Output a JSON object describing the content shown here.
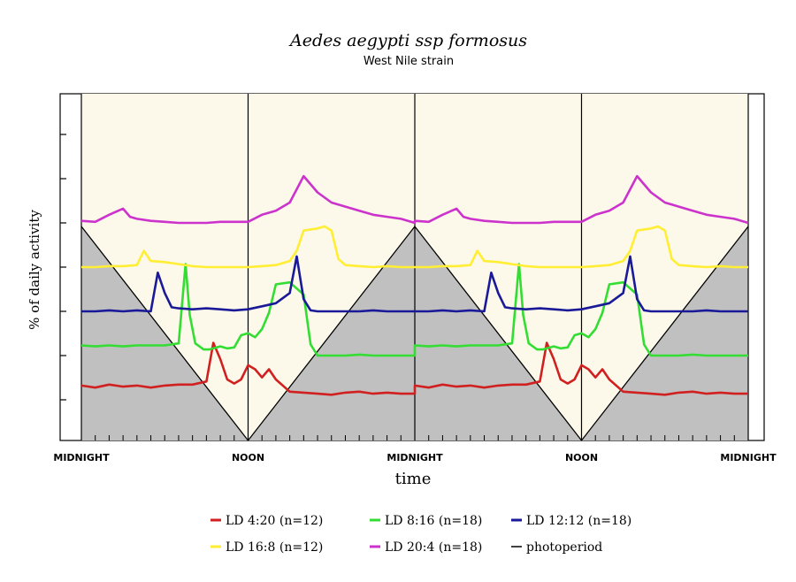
{
  "chart_data": {
    "type": "line",
    "title": "Aedes aegypti ssp formosus",
    "subtitle": "West Nile strain",
    "xlabel": "time",
    "ylabel": "% of daily activity",
    "x_tick_labels": [
      "MIDNIGHT",
      "NOON",
      "MIDNIGHT",
      "NOON",
      "MIDNIGHT"
    ],
    "x_range_hours": [
      0,
      48
    ],
    "grid": false,
    "legend_placement": "bottom",
    "photoperiod": {
      "name": "photoperiod",
      "color": "#000000",
      "points": [
        [
          0,
          6
        ],
        [
          12,
          0
        ],
        [
          24,
          6
        ],
        [
          36,
          0
        ],
        [
          48,
          6
        ]
      ],
      "lights_on_color": "#fdf9ea",
      "lights_off_color": "#c0c0c0"
    },
    "series": [
      {
        "name": "LD 4:20 (n=12)",
        "color": "#d02020",
        "x": [
          0,
          1,
          2,
          3,
          4,
          5,
          6,
          7,
          8,
          9,
          9.5,
          10,
          10.5,
          11,
          11.5,
          12,
          12.5,
          13,
          13.5,
          14,
          15,
          16,
          17,
          18,
          19,
          20,
          21,
          22,
          23,
          24
        ],
        "values": [
          0.7,
          0.6,
          0.75,
          0.65,
          0.7,
          0.6,
          0.7,
          0.75,
          0.75,
          0.9,
          2.8,
          2.0,
          1.0,
          0.8,
          1.0,
          1.7,
          1.5,
          1.1,
          1.5,
          1.0,
          0.4,
          0.35,
          0.3,
          0.25,
          0.35,
          0.4,
          0.3,
          0.35,
          0.3,
          0.3
        ]
      },
      {
        "name": "LD 8:16 (n=18)",
        "color": "#33dd33",
        "x": [
          0,
          1,
          2,
          3,
          4,
          5,
          6,
          7,
          7.5,
          7.8,
          8.2,
          8.8,
          9.2,
          10,
          10.5,
          11,
          11.5,
          12,
          12.5,
          13,
          13.5,
          14,
          15,
          16,
          16.5,
          17,
          18,
          19,
          20,
          21,
          22,
          23,
          24
        ],
        "values": [
          0.5,
          0.45,
          0.5,
          0.45,
          0.5,
          0.5,
          0.5,
          0.6,
          4.5,
          2.0,
          0.6,
          0.3,
          0.3,
          0.45,
          0.35,
          0.4,
          1.0,
          1.1,
          0.9,
          1.3,
          2.1,
          3.5,
          3.6,
          3.0,
          0.55,
          0.0,
          0.0,
          0.0,
          0.05,
          0.0,
          0.0,
          0.0,
          0.0
        ]
      },
      {
        "name": "LD 12:12 (n=18)",
        "color": "#1a1a99",
        "x": [
          0,
          1,
          2,
          3,
          4,
          5,
          5.5,
          6,
          6.5,
          7,
          8,
          9,
          10,
          11,
          12,
          13,
          14,
          15,
          15.5,
          16,
          16.5,
          17,
          18,
          19,
          20,
          21,
          22,
          23,
          24
        ],
        "values": [
          0.0,
          0.0,
          0.05,
          0.0,
          0.05,
          0.0,
          1.9,
          0.9,
          0.2,
          0.15,
          0.1,
          0.15,
          0.1,
          0.05,
          0.1,
          0.25,
          0.4,
          0.9,
          2.7,
          0.6,
          0.05,
          0.0,
          0.0,
          0.0,
          0.0,
          0.05,
          0.0,
          0.0,
          0.0
        ]
      },
      {
        "name": "LD 16:8 (n=12)",
        "color": "#ffee33",
        "x": [
          0,
          1,
          2,
          3,
          4,
          4.5,
          5,
          6,
          7,
          8,
          9,
          10,
          11,
          12,
          13,
          14,
          15,
          15.5,
          16,
          17,
          17.5,
          18,
          18.5,
          19,
          20,
          21,
          22,
          23,
          24
        ],
        "values": [
          0.0,
          0.0,
          0.05,
          0.05,
          0.1,
          0.8,
          0.3,
          0.25,
          0.15,
          0.05,
          0.0,
          0.0,
          0.0,
          0.0,
          0.05,
          0.1,
          0.3,
          0.8,
          1.8,
          1.9,
          2.0,
          1.8,
          0.4,
          0.1,
          0.05,
          0.0,
          0.05,
          0.0,
          0.0
        ]
      },
      {
        "name": "LD 20:4 (n=18)",
        "color": "#cc33cc",
        "x": [
          0,
          1,
          2,
          3,
          3.5,
          4,
          5,
          6,
          7,
          8,
          9,
          10,
          11,
          12,
          13,
          14,
          15,
          16,
          17,
          18,
          19,
          20,
          21,
          22,
          23,
          24
        ],
        "values": [
          0.1,
          0.05,
          0.4,
          0.7,
          0.3,
          0.2,
          0.1,
          0.05,
          0.0,
          0.0,
          0.0,
          0.05,
          0.05,
          0.05,
          0.4,
          0.6,
          1.0,
          2.3,
          1.5,
          1.0,
          0.8,
          0.6,
          0.4,
          0.3,
          0.2,
          0.0
        ]
      }
    ],
    "series_offsets": [
      0,
      1,
      2,
      3,
      4
    ],
    "legend": [
      {
        "label": "LD 4:20 (n=12)",
        "color": "#d02020"
      },
      {
        "label": "LD 8:16 (n=18)",
        "color": "#33dd33"
      },
      {
        "label": "LD 12:12 (n=18)",
        "color": "#1a1a99"
      },
      {
        "label": "LD 16:8 (n=12)",
        "color": "#ffee33"
      },
      {
        "label": "LD 20:4 (n=18)",
        "color": "#cc33cc"
      },
      {
        "label": "photoperiod",
        "color": "#000000"
      }
    ]
  }
}
